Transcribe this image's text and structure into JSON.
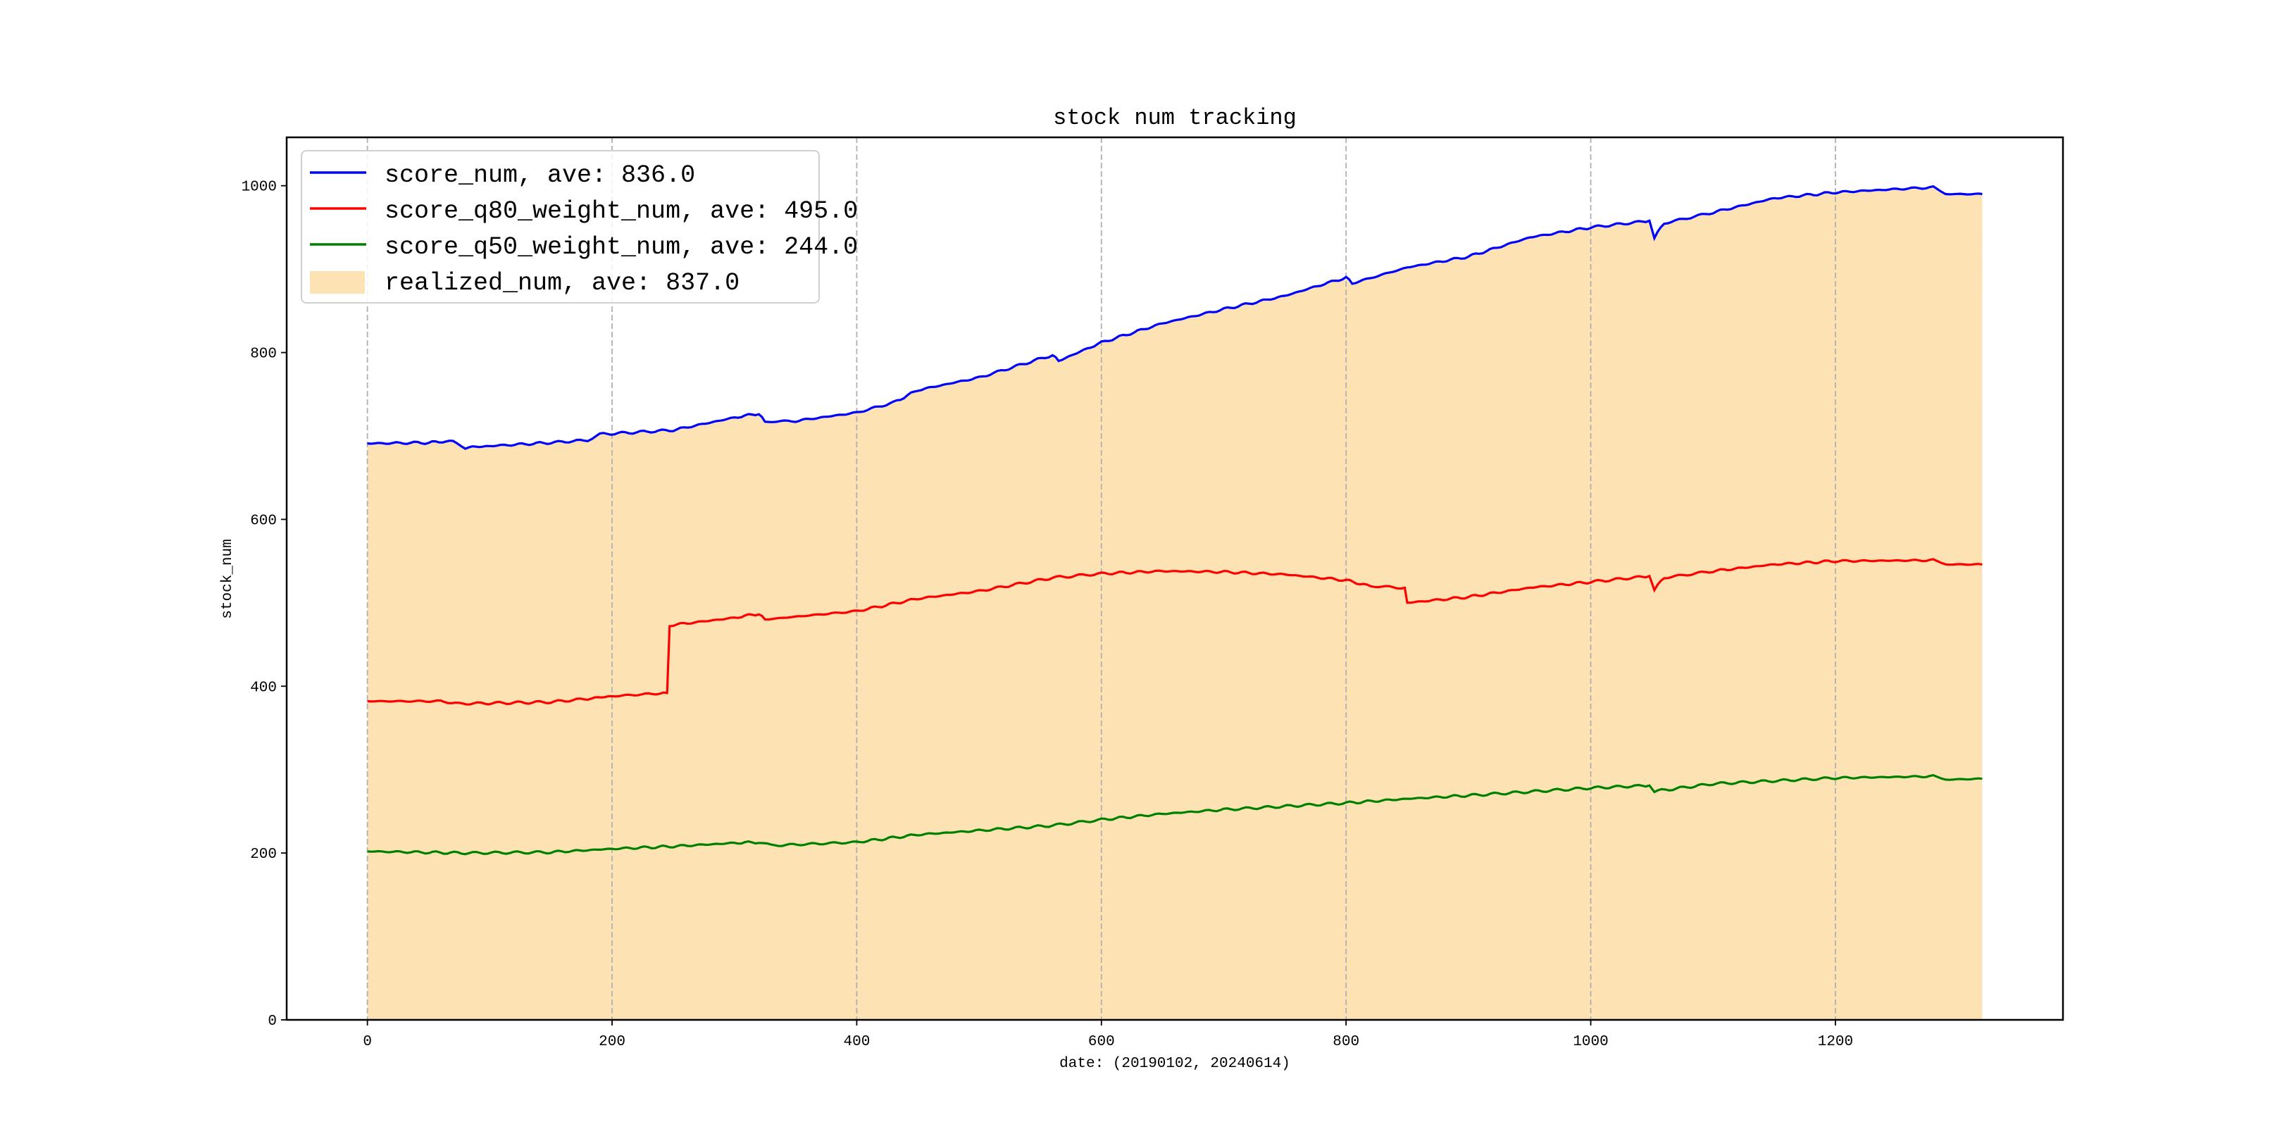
{
  "chart_data": {
    "type": "line",
    "title": "stock num tracking",
    "xlabel": "date: (20190102, 20240614)",
    "ylabel": "stock_num",
    "xlim": [
      -66,
      1386
    ],
    "ylim": [
      0,
      1058
    ],
    "xticks": [
      0,
      200,
      400,
      600,
      800,
      1000,
      1200
    ],
    "yticks": [
      0,
      200,
      400,
      600,
      800,
      1000
    ],
    "grid": "vertical dashed at x ticks",
    "legend_position": "top-left",
    "series": [
      {
        "name": "score_num, ave: 836.0",
        "kind": "line",
        "color": "#0000ff",
        "x": [
          0,
          50,
          70,
          80,
          100,
          150,
          180,
          190,
          250,
          300,
          320,
          325,
          350,
          400,
          430,
          450,
          500,
          560,
          565,
          600,
          650,
          700,
          750,
          800,
          805,
          850,
          900,
          950,
          1000,
          1048,
          1052,
          1060,
          1100,
          1150,
          1200,
          1250,
          1280,
          1290,
          1320
        ],
        "y": [
          691,
          692,
          694,
          686,
          688,
          692,
          695,
          702,
          707,
          722,
          727,
          717,
          718,
          728,
          740,
          755,
          770,
          797,
          790,
          812,
          835,
          852,
          868,
          890,
          883,
          902,
          915,
          938,
          950,
          958,
          938,
          955,
          968,
          985,
          992,
          996,
          998,
          990,
          990
        ]
      },
      {
        "name": "score_q80_weight_num, ave: 495.0",
        "kind": "line",
        "color": "#ff0000",
        "x": [
          0,
          60,
          75,
          150,
          180,
          200,
          245,
          247,
          300,
          320,
          325,
          400,
          450,
          500,
          560,
          600,
          650,
          700,
          750,
          800,
          820,
          848,
          850,
          900,
          950,
          1000,
          1048,
          1052,
          1060,
          1100,
          1150,
          1200,
          1280,
          1290,
          1320
        ],
        "y": [
          382,
          382,
          379,
          381,
          385,
          388,
          392,
          473,
          482,
          487,
          480,
          490,
          505,
          514,
          530,
          535,
          538,
          537,
          534,
          527,
          520,
          518,
          500,
          507,
          518,
          525,
          532,
          516,
          530,
          538,
          546,
          550,
          551,
          546,
          546
        ]
      },
      {
        "name": "score_q50_weight_num, ave: 244.0",
        "kind": "line",
        "color": "#008000",
        "x": [
          0,
          80,
          150,
          200,
          250,
          300,
          320,
          330,
          400,
          450,
          500,
          560,
          600,
          650,
          700,
          800,
          850,
          900,
          1000,
          1048,
          1052,
          1100,
          1200,
          1280,
          1290,
          1320
        ],
        "y": [
          202,
          200,
          201,
          205,
          208,
          212,
          213,
          209,
          213,
          222,
          227,
          233,
          240,
          247,
          252,
          260,
          265,
          269,
          278,
          281,
          274,
          283,
          290,
          292,
          288,
          289
        ]
      },
      {
        "name": "realized_num, ave: 837.0",
        "kind": "area",
        "color": "#fde2b3",
        "x": [
          0,
          50,
          70,
          80,
          100,
          150,
          180,
          190,
          250,
          300,
          320,
          325,
          350,
          400,
          430,
          450,
          500,
          560,
          565,
          600,
          650,
          700,
          750,
          800,
          805,
          850,
          900,
          950,
          1000,
          1048,
          1052,
          1060,
          1100,
          1150,
          1200,
          1250,
          1280,
          1290,
          1320
        ],
        "y": [
          691,
          692,
          694,
          686,
          688,
          692,
          695,
          702,
          707,
          722,
          727,
          717,
          718,
          728,
          740,
          755,
          770,
          797,
          790,
          812,
          835,
          852,
          868,
          890,
          883,
          902,
          915,
          938,
          950,
          958,
          938,
          955,
          968,
          985,
          992,
          996,
          998,
          990,
          990
        ]
      }
    ]
  }
}
